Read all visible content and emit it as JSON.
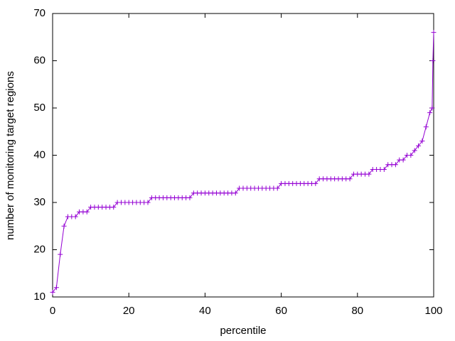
{
  "chart_data": {
    "type": "line",
    "xlabel": "percentile",
    "ylabel": "number of monitoring target regions",
    "x": [
      0,
      1,
      2,
      3,
      4,
      5,
      6,
      7,
      8,
      9,
      10,
      11,
      12,
      13,
      14,
      15,
      16,
      17,
      18,
      19,
      20,
      21,
      22,
      23,
      24,
      25,
      26,
      27,
      28,
      29,
      30,
      31,
      32,
      33,
      34,
      35,
      36,
      37,
      38,
      39,
      40,
      41,
      42,
      43,
      44,
      45,
      46,
      47,
      48,
      49,
      50,
      51,
      52,
      53,
      54,
      55,
      56,
      57,
      58,
      59,
      60,
      61,
      62,
      63,
      64,
      65,
      66,
      67,
      68,
      69,
      70,
      71,
      72,
      73,
      74,
      75,
      76,
      77,
      78,
      79,
      80,
      81,
      82,
      83,
      84,
      85,
      86,
      87,
      88,
      89,
      90,
      91,
      92,
      93,
      94,
      95,
      96,
      97,
      98,
      99,
      99.6,
      99.8,
      100
    ],
    "values": [
      11,
      12,
      19,
      25,
      27,
      27,
      27,
      28,
      28,
      28,
      29,
      29,
      29,
      29,
      29,
      29,
      29,
      30,
      30,
      30,
      30,
      30,
      30,
      30,
      30,
      30,
      31,
      31,
      31,
      31,
      31,
      31,
      31,
      31,
      31,
      31,
      31,
      32,
      32,
      32,
      32,
      32,
      32,
      32,
      32,
      32,
      32,
      32,
      32,
      33,
      33,
      33,
      33,
      33,
      33,
      33,
      33,
      33,
      33,
      33,
      34,
      34,
      34,
      34,
      34,
      34,
      34,
      34,
      34,
      34,
      35,
      35,
      35,
      35,
      35,
      35,
      35,
      35,
      35,
      36,
      36,
      36,
      36,
      36,
      37,
      37,
      37,
      37,
      38,
      38,
      38,
      39,
      39,
      40,
      40,
      41,
      42,
      43,
      46,
      49,
      50,
      60,
      66
    ],
    "color": "#9400d3",
    "xlim": [
      0,
      100
    ],
    "xticks": [
      0,
      20,
      40,
      60,
      80,
      100
    ],
    "ylim": [
      10,
      70
    ],
    "yticks": [
      10,
      20,
      30,
      40,
      50,
      60,
      70
    ]
  }
}
